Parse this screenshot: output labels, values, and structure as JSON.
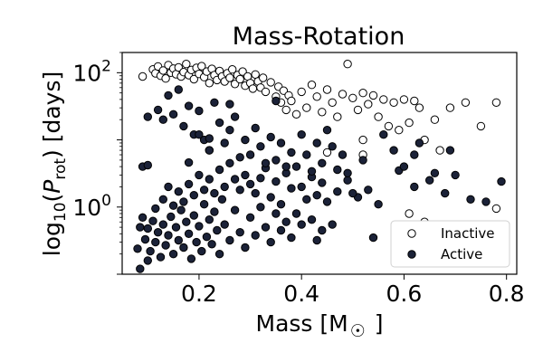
{
  "chart_data": {
    "type": "scatter",
    "title": "Mass-Rotation",
    "xlabel": "Mass [M☉]",
    "ylabel": "log10(Prot) [days]",
    "xlim": [
      0.05,
      0.82
    ],
    "ylim": [
      0.1,
      200
    ],
    "yscale": "log",
    "xticks": [
      0.2,
      0.4,
      0.6,
      0.8
    ],
    "xtick_labels": [
      "0.2",
      "0.4",
      "0.6",
      "0.8"
    ],
    "yticks": [
      1,
      100
    ],
    "ytick_labels": [
      "10^0",
      "10^2"
    ],
    "legend": {
      "position": "lower-right",
      "entries": [
        {
          "label": "Inactive",
          "marker": "open-circle"
        },
        {
          "label": "Active",
          "marker": "filled-circle"
        }
      ]
    },
    "colors": {
      "inactive_fill": "#ffffff",
      "active_fill": "#1b2238",
      "marker_edge": "#000000"
    },
    "series": [
      {
        "name": "Inactive",
        "points": [
          [
            0.09,
            88
          ],
          [
            0.11,
            112
          ],
          [
            0.115,
            98
          ],
          [
            0.12,
            124
          ],
          [
            0.125,
            90
          ],
          [
            0.13,
            108
          ],
          [
            0.135,
            82
          ],
          [
            0.14,
            130
          ],
          [
            0.145,
            100
          ],
          [
            0.15,
            115
          ],
          [
            0.155,
            95
          ],
          [
            0.16,
            120
          ],
          [
            0.165,
            88
          ],
          [
            0.17,
            102
          ],
          [
            0.175,
            135
          ],
          [
            0.18,
            92
          ],
          [
            0.185,
            110
          ],
          [
            0.19,
            80
          ],
          [
            0.195,
            118
          ],
          [
            0.2,
            96
          ],
          [
            0.205,
            125
          ],
          [
            0.21,
            86
          ],
          [
            0.215,
            104
          ],
          [
            0.22,
            70
          ],
          [
            0.225,
            114
          ],
          [
            0.23,
            92
          ],
          [
            0.235,
            78
          ],
          [
            0.24,
            106
          ],
          [
            0.245,
            88
          ],
          [
            0.25,
            74
          ],
          [
            0.255,
            98
          ],
          [
            0.26,
            84
          ],
          [
            0.265,
            112
          ],
          [
            0.27,
            68
          ],
          [
            0.275,
            92
          ],
          [
            0.28,
            80
          ],
          [
            0.285,
            104
          ],
          [
            0.29,
            64
          ],
          [
            0.295,
            88
          ],
          [
            0.3,
            70
          ],
          [
            0.305,
            58
          ],
          [
            0.31,
            94
          ],
          [
            0.315,
            74
          ],
          [
            0.32,
            60
          ],
          [
            0.325,
            84
          ],
          [
            0.33,
            52
          ],
          [
            0.34,
            72
          ],
          [
            0.35,
            44
          ],
          [
            0.355,
            62
          ],
          [
            0.36,
            36
          ],
          [
            0.365,
            54
          ],
          [
            0.37,
            28
          ],
          [
            0.375,
            46
          ],
          [
            0.38,
            38
          ],
          [
            0.39,
            24
          ],
          [
            0.4,
            52
          ],
          [
            0.41,
            30
          ],
          [
            0.42,
            66
          ],
          [
            0.43,
            44
          ],
          [
            0.44,
            26
          ],
          [
            0.45,
            56
          ],
          [
            0.46,
            36
          ],
          [
            0.47,
            22
          ],
          [
            0.48,
            48
          ],
          [
            0.49,
            135
          ],
          [
            0.5,
            42
          ],
          [
            0.51,
            28
          ],
          [
            0.52,
            50
          ],
          [
            0.53,
            34
          ],
          [
            0.54,
            46
          ],
          [
            0.55,
            22
          ],
          [
            0.56,
            40
          ],
          [
            0.57,
            16
          ],
          [
            0.58,
            36
          ],
          [
            0.59,
            14
          ],
          [
            0.6,
            40
          ],
          [
            0.61,
            18
          ],
          [
            0.62,
            38
          ],
          [
            0.63,
            30
          ],
          [
            0.64,
            10
          ],
          [
            0.66,
            20
          ],
          [
            0.67,
            7
          ],
          [
            0.69,
            30
          ],
          [
            0.72,
            36
          ],
          [
            0.75,
            16
          ],
          [
            0.78,
            36
          ],
          [
            0.78,
            0.95
          ],
          [
            0.45,
            6.5
          ],
          [
            0.52,
            6
          ],
          [
            0.22,
            7
          ],
          [
            0.64,
            0.6
          ],
          [
            0.61,
            0.8
          ],
          [
            0.52,
            10
          ]
        ]
      },
      {
        "name": "Active",
        "points": [
          [
            0.08,
            0.24
          ],
          [
            0.085,
            0.5
          ],
          [
            0.09,
            0.7
          ],
          [
            0.095,
            0.33
          ],
          [
            0.1,
            0.48
          ],
          [
            0.105,
            0.22
          ],
          [
            0.11,
            0.62
          ],
          [
            0.115,
            0.3
          ],
          [
            0.12,
            0.42
          ],
          [
            0.125,
            0.18
          ],
          [
            0.13,
            0.55
          ],
          [
            0.135,
            0.27
          ],
          [
            0.14,
            0.38
          ],
          [
            0.145,
            0.72
          ],
          [
            0.15,
            0.2
          ],
          [
            0.155,
            0.5
          ],
          [
            0.16,
            0.32
          ],
          [
            0.165,
            0.9
          ],
          [
            0.17,
            0.25
          ],
          [
            0.175,
            0.6
          ],
          [
            0.18,
            0.4
          ],
          [
            0.185,
            0.17
          ],
          [
            0.19,
            0.75
          ],
          [
            0.195,
            0.3
          ],
          [
            0.2,
            0.52
          ],
          [
            0.205,
            0.22
          ],
          [
            0.21,
            1.1
          ],
          [
            0.215,
            0.36
          ],
          [
            0.22,
            0.65
          ],
          [
            0.225,
            0.28
          ],
          [
            0.23,
            0.85
          ],
          [
            0.235,
            0.45
          ],
          [
            0.24,
            0.2
          ],
          [
            0.245,
            1.3
          ],
          [
            0.25,
            0.55
          ],
          [
            0.26,
            0.32
          ],
          [
            0.27,
            0.9
          ],
          [
            0.28,
            0.42
          ],
          [
            0.29,
            0.25
          ],
          [
            0.3,
            0.7
          ],
          [
            0.31,
            0.38
          ],
          [
            0.32,
            1.0
          ],
          [
            0.33,
            0.5
          ],
          [
            0.34,
            0.3
          ],
          [
            0.35,
            0.8
          ],
          [
            0.36,
            0.45
          ],
          [
            0.37,
            0.6
          ],
          [
            0.38,
            0.35
          ],
          [
            0.39,
            0.8
          ],
          [
            0.4,
            0.55
          ],
          [
            0.085,
            0.12
          ],
          [
            0.1,
            0.16
          ],
          [
            0.115,
            0.95
          ],
          [
            0.13,
            1.3
          ],
          [
            0.15,
            1.05
          ],
          [
            0.16,
            1.7
          ],
          [
            0.17,
            1.2
          ],
          [
            0.18,
            2.2
          ],
          [
            0.19,
            1.5
          ],
          [
            0.2,
            3.0
          ],
          [
            0.21,
            1.8
          ],
          [
            0.22,
            2.6
          ],
          [
            0.23,
            1.6
          ],
          [
            0.24,
            3.6
          ],
          [
            0.25,
            2.0
          ],
          [
            0.26,
            4.5
          ],
          [
            0.27,
            2.6
          ],
          [
            0.28,
            1.8
          ],
          [
            0.29,
            3.0
          ],
          [
            0.3,
            2.2
          ],
          [
            0.31,
            1.6
          ],
          [
            0.32,
            2.7
          ],
          [
            0.33,
            3.8
          ],
          [
            0.34,
            1.4
          ],
          [
            0.35,
            2.4
          ],
          [
            0.36,
            1.1
          ],
          [
            0.37,
            3.2
          ],
          [
            0.38,
            1.9
          ],
          [
            0.39,
            4.0
          ],
          [
            0.4,
            2.0
          ],
          [
            0.41,
            1.3
          ],
          [
            0.42,
            2.8
          ],
          [
            0.43,
            1.5
          ],
          [
            0.44,
            2.3
          ],
          [
            0.45,
            1.2
          ],
          [
            0.47,
            1.7
          ],
          [
            0.49,
            2.5
          ],
          [
            0.51,
            1.4
          ],
          [
            0.53,
            1.8
          ],
          [
            0.55,
            1.1
          ],
          [
            0.59,
            3.5
          ],
          [
            0.62,
            2.0
          ],
          [
            0.65,
            2.5
          ],
          [
            0.68,
            1.6
          ],
          [
            0.7,
            3.0
          ],
          [
            0.73,
            1.3
          ],
          [
            0.79,
            2.4
          ],
          [
            0.76,
            1.2
          ],
          [
            0.67,
            0.2
          ],
          [
            0.61,
            0.4
          ],
          [
            0.54,
            0.35
          ],
          [
            0.5,
            1.6
          ],
          [
            0.49,
            3.2
          ],
          [
            0.46,
            0.55
          ],
          [
            0.44,
            0.45
          ],
          [
            0.42,
            0.65
          ],
          [
            0.43,
            0.32
          ],
          [
            0.09,
            4.0
          ],
          [
            0.1,
            4.2
          ],
          [
            0.1,
            22
          ],
          [
            0.12,
            28
          ],
          [
            0.13,
            20
          ],
          [
            0.14,
            46
          ],
          [
            0.15,
            24
          ],
          [
            0.16,
            56
          ],
          [
            0.17,
            16
          ],
          [
            0.18,
            32
          ],
          [
            0.19,
            12
          ],
          [
            0.2,
            27
          ],
          [
            0.21,
            10
          ],
          [
            0.22,
            7
          ],
          [
            0.23,
            36
          ],
          [
            0.24,
            18
          ],
          [
            0.25,
            9
          ],
          [
            0.26,
            14
          ],
          [
            0.27,
            22
          ],
          [
            0.28,
            5.5
          ],
          [
            0.29,
            10
          ],
          [
            0.3,
            6
          ],
          [
            0.31,
            15
          ],
          [
            0.32,
            8
          ],
          [
            0.33,
            4.5
          ],
          [
            0.34,
            11
          ],
          [
            0.35,
            5
          ],
          [
            0.36,
            9
          ],
          [
            0.37,
            4
          ],
          [
            0.38,
            6.5
          ],
          [
            0.4,
            12
          ],
          [
            0.41,
            6
          ],
          [
            0.42,
            3.4
          ],
          [
            0.43,
            9
          ],
          [
            0.44,
            4.5
          ],
          [
            0.46,
            8
          ],
          [
            0.47,
            3.6
          ],
          [
            0.48,
            6
          ],
          [
            0.52,
            5
          ],
          [
            0.56,
            12
          ],
          [
            0.58,
            7
          ],
          [
            0.6,
            4
          ],
          [
            0.63,
            9
          ],
          [
            0.66,
            3.2
          ],
          [
            0.69,
            7
          ],
          [
            0.62,
            6
          ],
          [
            0.14,
            2.0
          ],
          [
            0.18,
            4.6
          ],
          [
            0.2,
            12
          ],
          [
            0.22,
            10.5
          ],
          [
            0.26,
            34
          ],
          [
            0.35,
            38
          ],
          [
            0.45,
            14
          ]
        ]
      }
    ]
  }
}
